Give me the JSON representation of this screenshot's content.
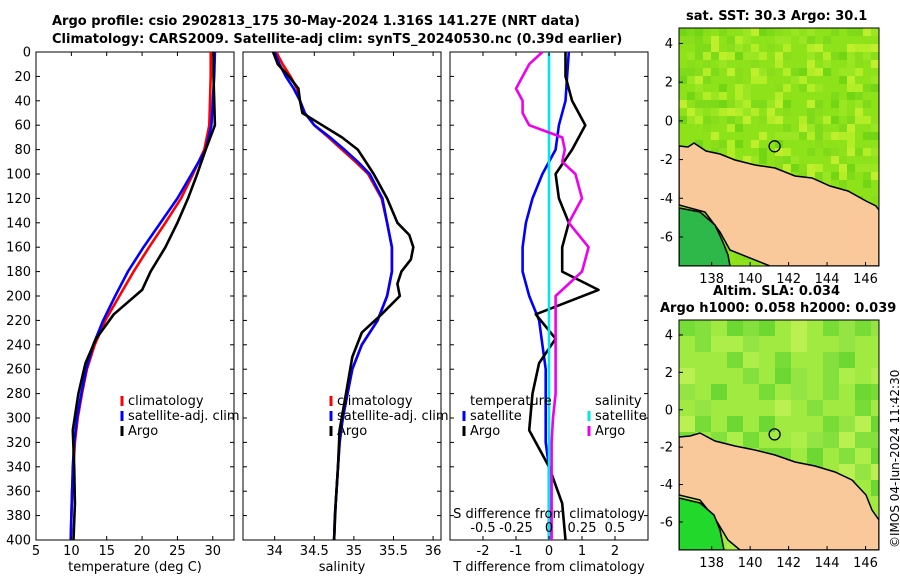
{
  "header": {
    "title_line1": "Argo profile: csio 2902813_175 30-May-2024 1.316S 141.27E (NRT data)",
    "title_line2": "Climatology: CARS2009. Satellite-adj clim: synTS_20240530.nc (0.39d earlier)"
  },
  "map_sst": {
    "title": "sat. SST: 30.3 Argo: 30.1"
  },
  "map_sla": {
    "title_line1": "Altim. SLA: 0.034",
    "title_line2": "Argo h1000: 0.058 h2000: 0.039"
  },
  "credit": "©IMOS 04-Jun-2024 11:42:30",
  "colors": {
    "climatology": "#ff0000",
    "satellite": "#0000ff",
    "argo": "#000000",
    "sal_satellite": "#00e5ee",
    "sal_argo": "#ee00ee",
    "land": "#f9c89b"
  },
  "chart_data": [
    {
      "type": "line",
      "title": "",
      "xlabel": "temperature (deg C)",
      "ylabel": "",
      "xlim": [
        5,
        33
      ],
      "ylim": [
        400,
        0
      ],
      "xticks": [
        "5",
        "10",
        "15",
        "20",
        "25",
        "30"
      ],
      "yticks": [
        "0",
        "20",
        "40",
        "60",
        "80",
        "100",
        "120",
        "140",
        "160",
        "180",
        "200",
        "220",
        "240",
        "260",
        "280",
        "300",
        "320",
        "340",
        "360",
        "380",
        "400"
      ],
      "legend": [
        "climatology",
        "satellite-adj. clim",
        "Argo"
      ],
      "series": [
        {
          "name": "climatology",
          "color": "#ff0000",
          "depth": [
            0,
            20,
            40,
            60,
            80,
            100,
            120,
            140,
            160,
            180,
            200,
            220,
            240,
            260,
            280,
            300,
            320,
            340,
            360,
            380,
            400
          ],
          "x": [
            29.7,
            29.7,
            29.6,
            29.5,
            28.8,
            27.2,
            25.5,
            23.3,
            21.0,
            18.8,
            16.8,
            14.8,
            13.3,
            12.2,
            11.5,
            10.9,
            10.5,
            10.3,
            10.1,
            10.0,
            9.9
          ]
        },
        {
          "name": "satellite-adj. clim",
          "color": "#0000ff",
          "depth": [
            0,
            20,
            40,
            60,
            80,
            100,
            120,
            140,
            160,
            180,
            200,
            220,
            240,
            260,
            280,
            300,
            320,
            340,
            360,
            380,
            400
          ],
          "x": [
            30.3,
            30.2,
            30.0,
            29.8,
            29.0,
            27.0,
            25.0,
            22.6,
            20.2,
            18.0,
            16.2,
            14.5,
            13.1,
            12.1,
            11.4,
            10.8,
            10.4,
            10.2,
            10.1,
            10.0,
            9.9
          ]
        },
        {
          "name": "Argo",
          "color": "#000000",
          "depth": [
            0,
            20,
            40,
            60,
            80,
            100,
            120,
            140,
            160,
            180,
            195,
            215,
            235,
            255,
            280,
            310,
            340,
            370,
            400
          ],
          "x": [
            30.1,
            30.1,
            30.2,
            30.3,
            29.0,
            27.8,
            26.5,
            25.0,
            23.3,
            21.2,
            20.0,
            16.0,
            13.5,
            12.0,
            11.0,
            10.2,
            10.4,
            10.5,
            10.3
          ]
        }
      ]
    },
    {
      "type": "line",
      "title": "",
      "xlabel": "salinity",
      "ylabel": "",
      "xlim": [
        33.6,
        36.1
      ],
      "ylim": [
        400,
        0
      ],
      "xticks": [
        "34",
        "34.5",
        "35",
        "35.5",
        "36"
      ],
      "legend": [
        "climatology",
        "satellite-adj. clim",
        "Argo"
      ],
      "series": [
        {
          "name": "climatology",
          "color": "#ff0000",
          "depth": [
            0,
            10,
            20,
            30,
            40,
            50,
            60,
            70,
            80,
            90,
            100,
            120,
            140,
            160,
            180,
            200,
            220,
            240,
            260,
            280,
            300,
            320,
            340,
            360,
            380,
            400
          ],
          "x": [
            34.02,
            34.1,
            34.2,
            34.28,
            34.32,
            34.38,
            34.5,
            34.68,
            34.85,
            35.02,
            35.18,
            35.35,
            35.42,
            35.48,
            35.48,
            35.42,
            35.3,
            35.1,
            34.98,
            34.92,
            34.86,
            34.82,
            34.8,
            34.78,
            34.76,
            34.75
          ]
        },
        {
          "name": "satellite-adj. clim",
          "color": "#0000ff",
          "depth": [
            0,
            10,
            20,
            30,
            40,
            50,
            60,
            70,
            80,
            90,
            100,
            120,
            140,
            160,
            180,
            200,
            220,
            240,
            260,
            280,
            300,
            320,
            340,
            360,
            380,
            400
          ],
          "x": [
            34.0,
            34.06,
            34.14,
            34.24,
            34.32,
            34.38,
            34.5,
            34.7,
            34.88,
            35.05,
            35.2,
            35.36,
            35.42,
            35.48,
            35.48,
            35.42,
            35.3,
            35.1,
            34.98,
            34.92,
            34.86,
            34.82,
            34.8,
            34.78,
            34.76,
            34.75
          ]
        },
        {
          "name": "Argo",
          "color": "#000000",
          "depth": [
            0,
            10,
            20,
            30,
            40,
            50,
            60,
            70,
            80,
            90,
            100,
            120,
            140,
            150,
            160,
            170,
            180,
            190,
            200,
            215,
            230,
            250,
            280,
            310,
            340,
            370,
            400
          ],
          "x": [
            33.98,
            34.04,
            34.18,
            34.3,
            34.32,
            34.35,
            34.6,
            34.85,
            35.05,
            35.15,
            35.25,
            35.42,
            35.55,
            35.7,
            35.75,
            35.72,
            35.6,
            35.55,
            35.58,
            35.35,
            35.1,
            34.98,
            34.9,
            34.82,
            34.8,
            34.77,
            34.75
          ]
        }
      ]
    },
    {
      "type": "line",
      "title": "",
      "xlabel": "T difference from climatology",
      "ylabel": "",
      "xlim": [
        -3,
        3
      ],
      "ylim": [
        400,
        0
      ],
      "xticks": [
        "-2",
        "-1",
        "0",
        "1",
        "2"
      ],
      "top_label": "S difference from climatology",
      "top_ticks": [
        "-0.5",
        "-0.25",
        "0",
        "0.25",
        "0.5"
      ],
      "legend_titles": [
        "temperature",
        "salinity"
      ],
      "legend": [
        "satellite",
        "Argo",
        "satellite",
        "Argo"
      ],
      "series": [
        {
          "name": "temperature satellite",
          "color": "#0000ff",
          "depth": [
            0,
            20,
            40,
            60,
            80,
            100,
            120,
            140,
            160,
            180,
            200,
            220,
            240,
            260,
            280,
            300,
            320,
            340,
            360,
            380,
            400
          ],
          "x": [
            0.6,
            0.55,
            0.5,
            0.3,
            0.2,
            -0.2,
            -0.5,
            -0.7,
            -0.8,
            -0.8,
            -0.6,
            -0.3,
            -0.2,
            -0.1,
            -0.1,
            -0.1,
            -0.1,
            0.0,
            0.0,
            0.0,
            0.0
          ]
        },
        {
          "name": "temperature Argo",
          "color": "#000000",
          "depth": [
            0,
            20,
            40,
            60,
            80,
            100,
            120,
            140,
            160,
            180,
            195,
            215,
            235,
            255,
            280,
            310,
            340,
            370,
            400
          ],
          "x": [
            0.5,
            0.5,
            0.7,
            1.1,
            0.7,
            0.2,
            0.3,
            0.6,
            0.4,
            0.4,
            1.5,
            -0.4,
            0.2,
            -0.3,
            -0.5,
            -0.6,
            0.0,
            0.4,
            0.5
          ]
        },
        {
          "name": "salinity satellite",
          "color": "#00e5ee",
          "depth": [
            0,
            40,
            80,
            120,
            160,
            200,
            240,
            280,
            320,
            360,
            400
          ],
          "x": [
            0.0,
            0.0,
            0.0,
            0.0,
            0.0,
            0.0,
            0.0,
            0.0,
            0.0,
            0.0,
            0.0
          ]
        },
        {
          "name": "salinity Argo",
          "color": "#ee00ee",
          "depth": [
            0,
            10,
            20,
            30,
            40,
            50,
            60,
            70,
            80,
            90,
            100,
            120,
            140,
            160,
            180,
            200,
            220,
            240,
            260,
            280,
            300,
            320,
            340,
            360,
            380,
            400
          ],
          "x": [
            -0.05,
            -0.15,
            -0.2,
            -0.25,
            -0.2,
            -0.2,
            -0.15,
            0.1,
            0.12,
            0.1,
            0.2,
            0.25,
            0.15,
            0.3,
            0.25,
            0.05,
            0.05,
            0.05,
            0.05,
            0.05,
            0.03,
            0.02,
            0.02,
            0.02,
            0.02,
            0.02
          ]
        }
      ]
    },
    {
      "type": "heatmap",
      "title": "sat. SST: 30.3 Argo: 30.1",
      "xticks": [
        "138",
        "140",
        "142",
        "144",
        "146"
      ],
      "yticks": [
        "4",
        "2",
        "0",
        "-2",
        "-4",
        "-6"
      ],
      "xlim": [
        136.3,
        146.7
      ],
      "ylim": [
        -7.5,
        4.8
      ],
      "argo_position": [
        141.27,
        -1.316
      ]
    },
    {
      "type": "heatmap",
      "title": "Altim. SLA: 0.034",
      "xticks": [
        "138",
        "140",
        "142",
        "144",
        "146"
      ],
      "yticks": [
        "4",
        "2",
        "0",
        "-2",
        "-4",
        "-6"
      ],
      "xlim": [
        136.3,
        146.7
      ],
      "ylim": [
        -7.5,
        4.8
      ],
      "argo_position": [
        141.27,
        -1.316
      ]
    }
  ]
}
